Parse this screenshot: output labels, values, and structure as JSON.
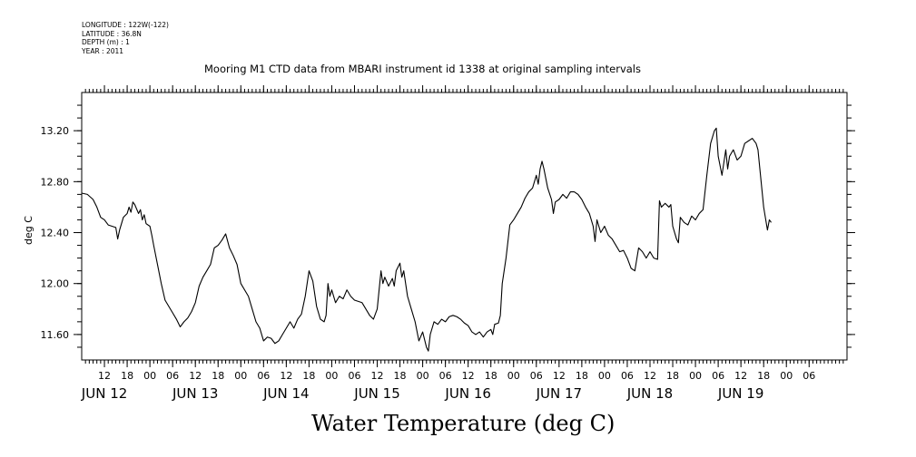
{
  "meta": {
    "longitude": "LONGITUDE : 122W(-122)",
    "latitude": "LATITUDE : 36.8N",
    "depth": "DEPTH (m) : 1",
    "year": "YEAR : 2011"
  },
  "chart_data": {
    "type": "line",
    "title": "Mooring M1 CTD data from MBARI instrument id 1338 at original sampling intervals",
    "xlabel": "Water Temperature (deg C)",
    "ylabel": "deg C",
    "ylim": [
      11.4,
      13.5
    ],
    "xlim_hours": [
      0,
      202
    ],
    "x_unit": "hours since JUN 11 06:00",
    "yticks": [
      11.6,
      12.0,
      12.4,
      12.8,
      13.2
    ],
    "ytick_labels": [
      "11.60",
      "12.00",
      "12.40",
      "12.80",
      "13.20"
    ],
    "hour_ticks": [
      {
        "h": 6,
        "label": "12"
      },
      {
        "h": 12,
        "label": "18"
      },
      {
        "h": 18,
        "label": "00"
      },
      {
        "h": 24,
        "label": "06"
      },
      {
        "h": 30,
        "label": "12"
      },
      {
        "h": 36,
        "label": "18"
      },
      {
        "h": 42,
        "label": "00"
      },
      {
        "h": 48,
        "label": "06"
      },
      {
        "h": 54,
        "label": "12"
      },
      {
        "h": 60,
        "label": "18"
      },
      {
        "h": 66,
        "label": "00"
      },
      {
        "h": 72,
        "label": "06"
      },
      {
        "h": 78,
        "label": "12"
      },
      {
        "h": 84,
        "label": "18"
      },
      {
        "h": 90,
        "label": "00"
      },
      {
        "h": 96,
        "label": "06"
      },
      {
        "h": 102,
        "label": "12"
      },
      {
        "h": 108,
        "label": "18"
      },
      {
        "h": 114,
        "label": "00"
      },
      {
        "h": 120,
        "label": "06"
      },
      {
        "h": 126,
        "label": "12"
      },
      {
        "h": 132,
        "label": "18"
      },
      {
        "h": 138,
        "label": "00"
      },
      {
        "h": 144,
        "label": "06"
      },
      {
        "h": 150,
        "label": "12"
      },
      {
        "h": 156,
        "label": "18"
      },
      {
        "h": 162,
        "label": "00"
      },
      {
        "h": 168,
        "label": "06"
      },
      {
        "h": 174,
        "label": "12"
      },
      {
        "h": 180,
        "label": "18"
      },
      {
        "h": 186,
        "label": "00"
      },
      {
        "h": 192,
        "label": "06"
      }
    ],
    "day_labels": [
      {
        "h": 6,
        "label": "JUN 12"
      },
      {
        "h": 30,
        "label": "JUN 13"
      },
      {
        "h": 54,
        "label": "JUN 14"
      },
      {
        "h": 78,
        "label": "JUN 15"
      },
      {
        "h": 102,
        "label": "JUN 16"
      },
      {
        "h": 126,
        "label": "JUN 17"
      },
      {
        "h": 150,
        "label": "JUN 18"
      },
      {
        "h": 174,
        "label": "JUN 19"
      }
    ],
    "series": [
      {
        "color": "#000000",
        "points": [
          [
            0,
            12.71
          ],
          [
            1.5,
            12.7
          ],
          [
            3,
            12.66
          ],
          [
            4,
            12.6
          ],
          [
            5,
            12.52
          ],
          [
            6,
            12.5
          ],
          [
            7,
            12.46
          ],
          [
            9,
            12.44
          ],
          [
            9.5,
            12.35
          ],
          [
            10,
            12.42
          ],
          [
            11,
            12.52
          ],
          [
            12,
            12.55
          ],
          [
            12.5,
            12.6
          ],
          [
            13,
            12.56
          ],
          [
            13.5,
            12.64
          ],
          [
            14,
            12.62
          ],
          [
            15,
            12.55
          ],
          [
            15.5,
            12.58
          ],
          [
            16,
            12.5
          ],
          [
            16.5,
            12.54
          ],
          [
            17,
            12.47
          ],
          [
            18,
            12.45
          ],
          [
            18.5,
            12.38
          ],
          [
            19,
            12.3
          ],
          [
            20,
            12.15
          ],
          [
            21,
            12.0
          ],
          [
            22,
            11.87
          ],
          [
            24,
            11.77
          ],
          [
            25,
            11.72
          ],
          [
            26,
            11.66
          ],
          [
            27,
            11.7
          ],
          [
            28,
            11.73
          ],
          [
            29,
            11.78
          ],
          [
            30,
            11.85
          ],
          [
            31,
            11.98
          ],
          [
            32,
            12.05
          ],
          [
            33,
            12.1
          ],
          [
            34,
            12.15
          ],
          [
            35,
            12.28
          ],
          [
            36,
            12.3
          ],
          [
            37,
            12.34
          ],
          [
            38,
            12.39
          ],
          [
            39,
            12.28
          ],
          [
            40,
            12.22
          ],
          [
            41,
            12.15
          ],
          [
            42,
            12.0
          ],
          [
            44,
            11.9
          ],
          [
            45,
            11.8
          ],
          [
            46,
            11.7
          ],
          [
            47,
            11.65
          ],
          [
            48,
            11.55
          ],
          [
            49,
            11.58
          ],
          [
            50,
            11.57
          ],
          [
            51,
            11.53
          ],
          [
            52,
            11.55
          ],
          [
            53,
            11.6
          ],
          [
            54,
            11.65
          ],
          [
            55,
            11.7
          ],
          [
            56,
            11.65
          ],
          [
            57,
            11.72
          ],
          [
            58,
            11.76
          ],
          [
            59,
            11.9
          ],
          [
            60,
            12.1
          ],
          [
            61,
            12.02
          ],
          [
            62,
            11.82
          ],
          [
            63,
            11.72
          ],
          [
            64,
            11.7
          ],
          [
            64.5,
            11.75
          ],
          [
            65,
            12.0
          ],
          [
            65.5,
            11.9
          ],
          [
            66,
            11.95
          ],
          [
            67,
            11.85
          ],
          [
            68,
            11.9
          ],
          [
            69,
            11.88
          ],
          [
            70,
            11.95
          ],
          [
            71,
            11.9
          ],
          [
            72,
            11.87
          ],
          [
            74,
            11.85
          ],
          [
            75,
            11.8
          ],
          [
            76,
            11.75
          ],
          [
            77,
            11.72
          ],
          [
            78,
            11.8
          ],
          [
            79,
            12.1
          ],
          [
            79.5,
            12.0
          ],
          [
            80,
            12.05
          ],
          [
            81,
            11.98
          ],
          [
            82,
            12.04
          ],
          [
            82.5,
            11.98
          ],
          [
            83,
            12.1
          ],
          [
            84,
            12.16
          ],
          [
            84.5,
            12.05
          ],
          [
            85,
            12.1
          ],
          [
            86,
            11.9
          ],
          [
            87,
            11.8
          ],
          [
            88,
            11.7
          ],
          [
            89,
            11.55
          ],
          [
            90,
            11.62
          ],
          [
            91,
            11.5
          ],
          [
            91.5,
            11.47
          ],
          [
            92,
            11.6
          ],
          [
            93,
            11.7
          ],
          [
            94,
            11.68
          ],
          [
            95,
            11.72
          ],
          [
            96,
            11.7
          ],
          [
            97,
            11.74
          ],
          [
            98,
            11.75
          ],
          [
            99,
            11.74
          ],
          [
            100,
            11.72
          ],
          [
            101,
            11.69
          ],
          [
            102,
            11.67
          ],
          [
            103,
            11.62
          ],
          [
            104,
            11.6
          ],
          [
            105,
            11.62
          ],
          [
            106,
            11.58
          ],
          [
            107,
            11.62
          ],
          [
            108,
            11.64
          ],
          [
            108.5,
            11.6
          ],
          [
            109,
            11.68
          ],
          [
            110,
            11.69
          ],
          [
            110.5,
            11.75
          ],
          [
            111,
            12.0
          ],
          [
            112,
            12.2
          ],
          [
            113,
            12.46
          ],
          [
            114,
            12.5
          ],
          [
            115,
            12.55
          ],
          [
            116,
            12.6
          ],
          [
            117,
            12.67
          ],
          [
            118,
            12.72
          ],
          [
            119,
            12.75
          ],
          [
            120,
            12.85
          ],
          [
            120.5,
            12.78
          ],
          [
            121,
            12.9
          ],
          [
            121.5,
            12.96
          ],
          [
            122,
            12.9
          ],
          [
            123,
            12.75
          ],
          [
            124,
            12.66
          ],
          [
            124.5,
            12.55
          ],
          [
            125,
            12.64
          ],
          [
            126,
            12.66
          ],
          [
            127,
            12.7
          ],
          [
            128,
            12.67
          ],
          [
            129,
            12.72
          ],
          [
            130,
            12.72
          ],
          [
            131,
            12.7
          ],
          [
            132,
            12.66
          ],
          [
            133,
            12.6
          ],
          [
            134,
            12.55
          ],
          [
            135,
            12.45
          ],
          [
            135.5,
            12.33
          ],
          [
            136,
            12.5
          ],
          [
            137,
            12.4
          ],
          [
            138,
            12.45
          ],
          [
            139,
            12.38
          ],
          [
            140,
            12.35
          ],
          [
            141,
            12.3
          ],
          [
            142,
            12.25
          ],
          [
            143,
            12.26
          ],
          [
            144,
            12.2
          ],
          [
            145,
            12.12
          ],
          [
            146,
            12.1
          ],
          [
            147,
            12.28
          ],
          [
            148,
            12.25
          ],
          [
            149,
            12.2
          ],
          [
            150,
            12.25
          ],
          [
            151,
            12.2
          ],
          [
            152,
            12.19
          ],
          [
            152.5,
            12.65
          ],
          [
            153,
            12.6
          ],
          [
            154,
            12.63
          ],
          [
            155,
            12.6
          ],
          [
            155.5,
            12.62
          ],
          [
            156,
            12.45
          ],
          [
            157,
            12.35
          ],
          [
            157.5,
            12.32
          ],
          [
            158,
            12.52
          ],
          [
            159,
            12.48
          ],
          [
            160,
            12.46
          ],
          [
            161,
            12.53
          ],
          [
            162,
            12.5
          ],
          [
            163,
            12.55
          ],
          [
            164,
            12.58
          ],
          [
            165,
            12.85
          ],
          [
            166,
            13.1
          ],
          [
            167,
            13.2
          ],
          [
            167.5,
            13.22
          ],
          [
            168,
            13.0
          ],
          [
            169,
            12.85
          ],
          [
            170,
            13.05
          ],
          [
            170.5,
            12.9
          ],
          [
            171,
            13.0
          ],
          [
            172,
            13.05
          ],
          [
            173,
            12.97
          ],
          [
            174,
            13.0
          ],
          [
            175,
            13.1
          ],
          [
            176,
            13.12
          ],
          [
            177,
            13.14
          ],
          [
            178,
            13.1
          ],
          [
            178.5,
            13.05
          ],
          [
            179,
            12.9
          ],
          [
            180,
            12.6
          ],
          [
            181,
            12.42
          ],
          [
            181.5,
            12.5
          ],
          [
            182,
            12.48
          ]
        ]
      }
    ]
  }
}
